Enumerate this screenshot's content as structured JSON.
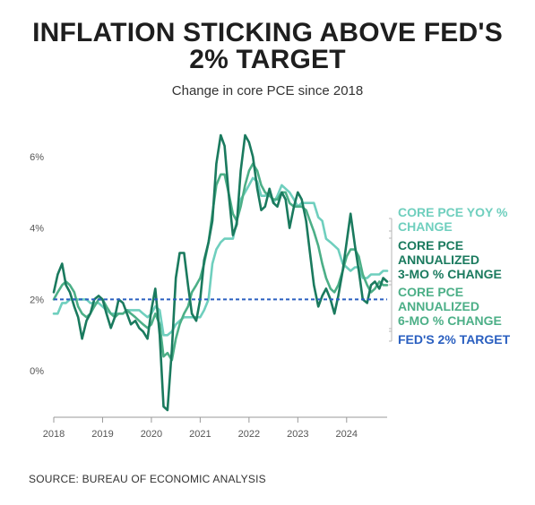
{
  "title": {
    "line1": "INFLATION STICKING ABOVE FED'S",
    "line2": "2% TARGET"
  },
  "subtitle": "Change in core PCE since 2018",
  "source": "SOURCE: BUREAU OF ECONOMIC ANALYSIS",
  "colors": {
    "yoy": "#6fcfbe",
    "three_mo": "#1a7a5e",
    "six_mo": "#4caf87",
    "target": "#2a5fc0",
    "axis": "#999999",
    "tick_text": "#555555"
  },
  "chart_data": {
    "type": "line",
    "title": "INFLATION STICKING ABOVE FED'S 2% TARGET",
    "subtitle": "Change in core PCE since 2018",
    "xlabel": "",
    "ylabel": "",
    "x_ticks": [
      "2018",
      "2019",
      "2020",
      "2021",
      "2022",
      "2023",
      "2024"
    ],
    "y_ticks": [
      "0%",
      "2%",
      "4%",
      "6%"
    ],
    "y_tick_values": [
      0,
      2,
      4,
      6
    ],
    "ylim": [
      -1.2,
      7
    ],
    "xlim": [
      2018.0,
      2024.83
    ],
    "grid": false,
    "legend_placement": "right",
    "reference_line": {
      "name": "FED'S 2% TARGET",
      "value": 2,
      "style": "dashed"
    },
    "series": [
      {
        "name": "CORE PCE YOY % CHANGE",
        "color": "#6fcfbe",
        "x": [
          2018.0,
          2018.08,
          2018.17,
          2018.25,
          2018.33,
          2018.42,
          2018.5,
          2018.58,
          2018.67,
          2018.75,
          2018.83,
          2018.92,
          2019.0,
          2019.08,
          2019.17,
          2019.25,
          2019.33,
          2019.42,
          2019.5,
          2019.58,
          2019.67,
          2019.75,
          2019.83,
          2019.92,
          2020.0,
          2020.08,
          2020.17,
          2020.25,
          2020.33,
          2020.42,
          2020.5,
          2020.58,
          2020.67,
          2020.75,
          2020.83,
          2020.92,
          2021.0,
          2021.08,
          2021.17,
          2021.25,
          2021.33,
          2021.42,
          2021.5,
          2021.58,
          2021.67,
          2021.75,
          2021.83,
          2021.92,
          2022.0,
          2022.08,
          2022.17,
          2022.25,
          2022.33,
          2022.42,
          2022.5,
          2022.58,
          2022.67,
          2022.75,
          2022.83,
          2022.92,
          2023.0,
          2023.08,
          2023.17,
          2023.25,
          2023.33,
          2023.42,
          2023.5,
          2023.58,
          2023.67,
          2023.75,
          2023.83,
          2023.92,
          2024.0,
          2024.08,
          2024.17,
          2024.25,
          2024.33,
          2024.42,
          2024.5,
          2024.58,
          2024.67,
          2024.75,
          2024.83
        ],
        "values": [
          1.6,
          1.6,
          1.9,
          1.9,
          2.0,
          2.0,
          2.0,
          2.0,
          2.0,
          1.9,
          1.9,
          1.9,
          1.8,
          1.7,
          1.6,
          1.6,
          1.6,
          1.6,
          1.7,
          1.7,
          1.7,
          1.7,
          1.6,
          1.5,
          1.6,
          1.8,
          1.7,
          1.0,
          1.0,
          1.1,
          1.3,
          1.4,
          1.5,
          1.5,
          1.5,
          1.5,
          1.5,
          1.7,
          2.0,
          3.0,
          3.4,
          3.6,
          3.7,
          3.7,
          3.7,
          4.2,
          4.8,
          5.0,
          5.2,
          5.4,
          5.3,
          4.9,
          4.9,
          5.0,
          4.7,
          4.9,
          5.2,
          5.1,
          5.0,
          4.8,
          4.6,
          4.7,
          4.7,
          4.7,
          4.7,
          4.3,
          4.2,
          3.7,
          3.6,
          3.5,
          3.4,
          3.0,
          2.9,
          2.8,
          2.9,
          2.9,
          2.6,
          2.6,
          2.7,
          2.7,
          2.7,
          2.8,
          2.8
        ]
      },
      {
        "name": "CORE PCE ANNUALIZED 3-MO % CHANGE",
        "color": "#1a7a5e",
        "x": [
          2018.0,
          2018.08,
          2018.17,
          2018.25,
          2018.33,
          2018.42,
          2018.5,
          2018.58,
          2018.67,
          2018.75,
          2018.83,
          2018.92,
          2019.0,
          2019.08,
          2019.17,
          2019.25,
          2019.33,
          2019.42,
          2019.5,
          2019.58,
          2019.67,
          2019.75,
          2019.83,
          2019.92,
          2020.0,
          2020.08,
          2020.17,
          2020.25,
          2020.33,
          2020.42,
          2020.5,
          2020.58,
          2020.67,
          2020.75,
          2020.83,
          2020.92,
          2021.0,
          2021.08,
          2021.17,
          2021.25,
          2021.33,
          2021.42,
          2021.5,
          2021.58,
          2021.67,
          2021.75,
          2021.83,
          2021.92,
          2022.0,
          2022.08,
          2022.17,
          2022.25,
          2022.33,
          2022.42,
          2022.5,
          2022.58,
          2022.67,
          2022.75,
          2022.83,
          2022.92,
          2023.0,
          2023.08,
          2023.17,
          2023.25,
          2023.33,
          2023.42,
          2023.5,
          2023.58,
          2023.67,
          2023.75,
          2023.83,
          2023.92,
          2024.0,
          2024.08,
          2024.17,
          2024.25,
          2024.33,
          2024.42,
          2024.5,
          2024.58,
          2024.67,
          2024.75,
          2024.83
        ],
        "values": [
          2.2,
          2.7,
          3.0,
          2.4,
          2.2,
          1.8,
          1.5,
          0.9,
          1.4,
          1.6,
          2.0,
          2.1,
          2.0,
          1.6,
          1.2,
          1.5,
          2.0,
          1.9,
          1.6,
          1.3,
          1.4,
          1.2,
          1.1,
          0.9,
          1.7,
          2.3,
          1.0,
          -1.0,
          -1.1,
          0.6,
          2.6,
          3.3,
          3.3,
          2.4,
          1.6,
          1.4,
          2.0,
          3.1,
          3.6,
          4.2,
          5.8,
          6.6,
          6.3,
          5.0,
          3.8,
          4.1,
          5.6,
          6.6,
          6.4,
          6.0,
          5.1,
          4.5,
          4.6,
          5.1,
          4.7,
          4.6,
          5.0,
          4.8,
          4.0,
          4.6,
          5.0,
          4.8,
          4.2,
          3.3,
          2.4,
          1.8,
          2.1,
          2.3,
          2.0,
          1.6,
          2.1,
          2.8,
          3.6,
          4.4,
          3.5,
          2.8,
          2.0,
          1.9,
          2.4,
          2.5,
          2.3,
          2.6,
          2.5
        ]
      },
      {
        "name": "CORE PCE ANNUALIZED 6-MO % CHANGE",
        "color": "#4caf87",
        "x": [
          2018.0,
          2018.08,
          2018.17,
          2018.25,
          2018.33,
          2018.42,
          2018.5,
          2018.58,
          2018.67,
          2018.75,
          2018.83,
          2018.92,
          2019.0,
          2019.08,
          2019.17,
          2019.25,
          2019.33,
          2019.42,
          2019.5,
          2019.58,
          2019.67,
          2019.75,
          2019.83,
          2019.92,
          2020.0,
          2020.08,
          2020.17,
          2020.25,
          2020.33,
          2020.42,
          2020.5,
          2020.58,
          2020.67,
          2020.75,
          2020.83,
          2020.92,
          2021.0,
          2021.08,
          2021.17,
          2021.25,
          2021.33,
          2021.42,
          2021.5,
          2021.58,
          2021.67,
          2021.75,
          2021.83,
          2021.92,
          2022.0,
          2022.08,
          2022.17,
          2022.25,
          2022.33,
          2022.42,
          2022.5,
          2022.58,
          2022.67,
          2022.75,
          2022.83,
          2022.92,
          2023.0,
          2023.08,
          2023.17,
          2023.25,
          2023.33,
          2023.42,
          2023.5,
          2023.58,
          2023.67,
          2023.75,
          2023.83,
          2023.92,
          2024.0,
          2024.08,
          2024.17,
          2024.25,
          2024.33,
          2024.42,
          2024.5,
          2024.58,
          2024.67,
          2024.75,
          2024.83
        ],
        "values": [
          2.0,
          2.2,
          2.4,
          2.5,
          2.4,
          2.2,
          1.8,
          1.6,
          1.5,
          1.6,
          1.8,
          2.0,
          2.0,
          1.8,
          1.6,
          1.5,
          1.6,
          1.6,
          1.7,
          1.6,
          1.5,
          1.4,
          1.3,
          1.2,
          1.3,
          1.6,
          1.3,
          0.4,
          0.5,
          0.3,
          0.9,
          1.3,
          1.6,
          1.8,
          2.2,
          2.4,
          2.6,
          3.0,
          3.6,
          4.4,
          5.2,
          5.5,
          5.5,
          5.0,
          4.4,
          4.2,
          4.6,
          5.2,
          5.6,
          5.8,
          5.6,
          5.2,
          5.0,
          4.9,
          4.8,
          4.8,
          5.0,
          5.0,
          4.7,
          4.6,
          4.6,
          4.6,
          4.5,
          4.2,
          3.9,
          3.5,
          3.0,
          2.6,
          2.3,
          2.2,
          2.4,
          2.8,
          3.2,
          3.4,
          3.4,
          3.2,
          2.7,
          2.4,
          2.2,
          2.3,
          2.5,
          2.4,
          2.4
        ]
      }
    ],
    "legend": [
      {
        "series": "CORE PCE YOY % CHANGE",
        "lines": [
          "CORE PCE YOY %",
          "CHANGE"
        ]
      },
      {
        "series": "CORE PCE ANNUALIZED 3-MO % CHANGE",
        "lines": [
          "CORE PCE",
          "ANNUALIZED",
          "3-MO % CHANGE"
        ]
      },
      {
        "series": "CORE PCE ANNUALIZED 6-MO % CHANGE",
        "lines": [
          "CORE PCE",
          "ANNUALIZED",
          "6-MO % CHANGE"
        ]
      },
      {
        "series": "FED'S 2% TARGET",
        "lines": [
          "FED'S 2% TARGET"
        ]
      }
    ]
  }
}
